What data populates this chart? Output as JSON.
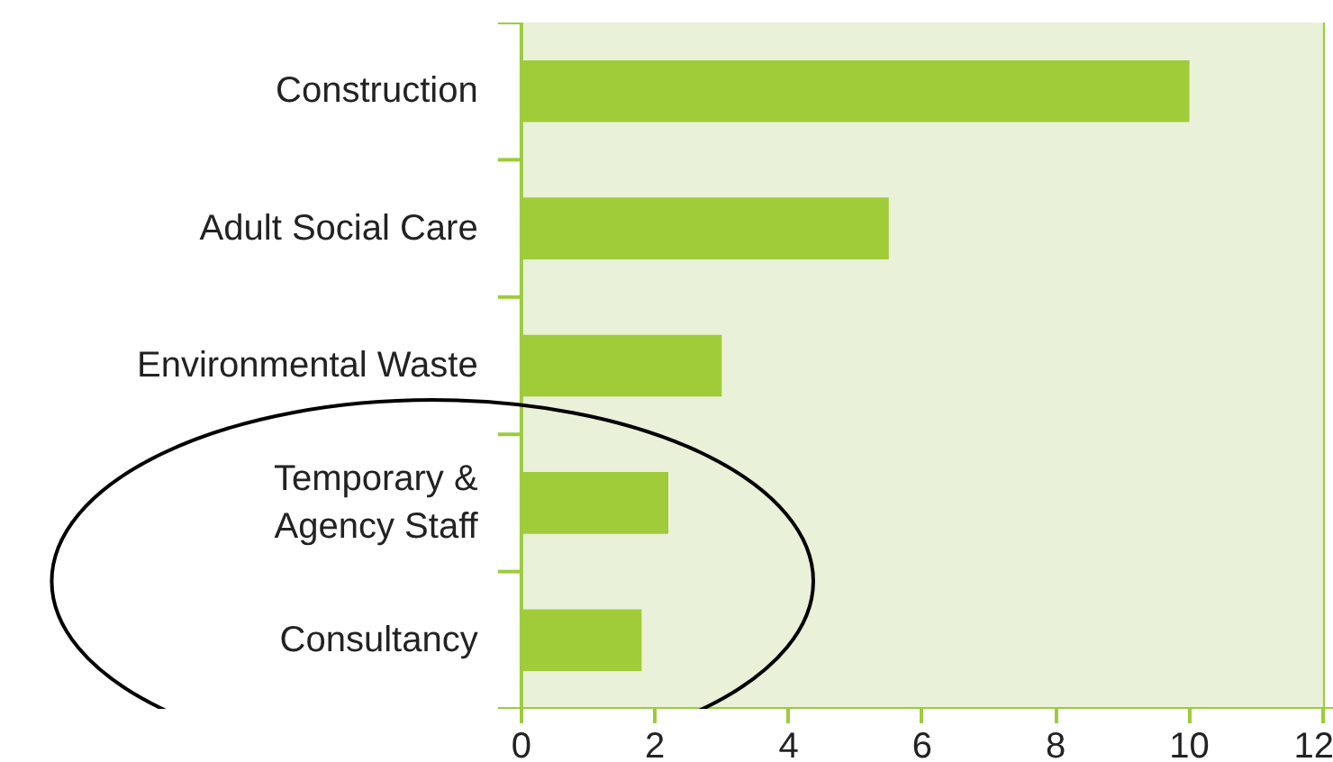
{
  "chart_data": {
    "type": "bar",
    "orientation": "horizontal",
    "categories": [
      "Construction",
      "Adult Social Care",
      "Environmental Waste",
      "Temporary &\nAgency Staff",
      "Consultancy"
    ],
    "values": [
      10,
      5.5,
      3,
      2.2,
      1.8
    ],
    "color": "#a0cc3a",
    "xlim": [
      0,
      12
    ],
    "xticks": [
      0,
      2,
      4,
      6,
      8,
      10,
      12
    ],
    "grid": "x"
  }
}
